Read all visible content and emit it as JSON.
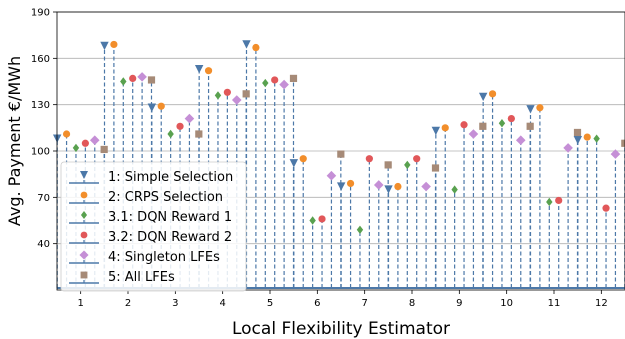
{
  "chart_data": {
    "type": "stem",
    "xlabel": "Local Flexibility Estimator",
    "ylabel": "Avg. Payment €/MWh",
    "ylim": [
      10,
      190
    ],
    "yticks": [
      40,
      70,
      100,
      130,
      160,
      190
    ],
    "categories": [
      "1",
      "2",
      "3",
      "4",
      "5",
      "6",
      "7",
      "8",
      "9",
      "10",
      "11",
      "12"
    ],
    "grid": "horizontal",
    "legend_position": "lower-left",
    "series": [
      {
        "name": "1: Simple Selection",
        "color": "#4c78a8",
        "marker": "triangle-down",
        "values": [
          108,
          168,
          128,
          153,
          169,
          92,
          77,
          75,
          113,
          135,
          127,
          107
        ]
      },
      {
        "name": "2: CRPS Selection",
        "color": "#f28e2b",
        "marker": "circle",
        "values": [
          111,
          169,
          129,
          152,
          167,
          95,
          79,
          77,
          115,
          137,
          128,
          109
        ]
      },
      {
        "name": "3.1: DQN Reward 1",
        "color": "#59a14f",
        "marker": "diamond-small",
        "values": [
          102,
          145,
          111,
          136,
          144,
          55,
          49,
          91,
          75,
          118,
          67,
          108
        ]
      },
      {
        "name": "3.2: DQN Reward 2",
        "color": "#e15759",
        "marker": "circle",
        "values": [
          105,
          147,
          116,
          138,
          146,
          56,
          95,
          95,
          117,
          121,
          68,
          63
        ]
      },
      {
        "name": "4: Singleton LFEs",
        "color": "#c58fd6",
        "marker": "diamond",
        "values": [
          107,
          148,
          121,
          133,
          143,
          84,
          78,
          77,
          111,
          107,
          102,
          98
        ]
      },
      {
        "name": "5: All LFEs",
        "color": "#a68a77",
        "marker": "square",
        "values": [
          101,
          146,
          111,
          137,
          147,
          98,
          91,
          89,
          116,
          116,
          112,
          105
        ]
      }
    ]
  }
}
